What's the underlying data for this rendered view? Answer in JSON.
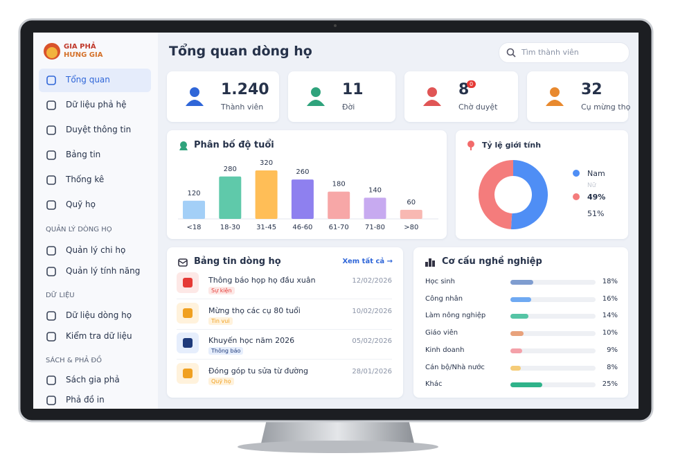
{
  "sidebar": {
    "brand": [
      "GIA PHẢ",
      "HƯNG GIA"
    ],
    "menu": [
      "Tổng quan",
      "Dữ liệu phả hệ",
      "Duyệt thông tin",
      "Bảng tin",
      "Thống kê",
      "Quỹ họ"
    ],
    "sections": [
      {
        "title": "QUẢN LÝ DÒNG HỌ",
        "items": [
          "Quản lý chi họ",
          "Quản lý tính năng"
        ]
      },
      {
        "title": "DỮ LIỆU",
        "items": [
          "Dữ liệu dòng họ",
          "Kiểm tra dữ liệu"
        ]
      },
      {
        "title": "SÁCH & PHẢ ĐỒ",
        "items": [
          "Sách gia phả",
          "Phả đồ in"
        ]
      }
    ]
  },
  "header": {
    "title": "Tổng quan dòng họ",
    "search_placeholder": "Tìm thành viên"
  },
  "stats": [
    {
      "value": "1.240",
      "label": "Thành viên"
    },
    {
      "value": "11",
      "label": "Đời"
    },
    {
      "value": "8",
      "badge": "0",
      "label": "Chờ duyệt"
    },
    {
      "value": "32",
      "label": "Cụ mừng thọ"
    }
  ],
  "age_chart": {
    "type": "bar",
    "title": "Phân bố độ tuổi",
    "categories": [
      "<18",
      "18-30",
      "31-45",
      "46-60",
      "61-70",
      "71-80",
      ">80"
    ],
    "values": [
      120,
      280,
      320,
      260,
      180,
      140,
      60
    ],
    "colors": [
      "#a3cff7",
      "#5fc9aa",
      "#ffbe57",
      "#8e80ef",
      "#f7a7a7",
      "#c7aaf0",
      "#f8b8b2"
    ]
  },
  "gender_chart": {
    "type": "donut",
    "title": "Tỷ lệ giới tính",
    "series": [
      {
        "name": "Nam",
        "color": "#4f8ef5",
        "value": 51,
        "value_label": "51%"
      },
      {
        "name": "Nữ",
        "color": "#f47c7c",
        "value": 49,
        "value_label": "49%"
      }
    ]
  },
  "news": {
    "title": "Bảng tin dòng họ",
    "link": "Xem tất cả →",
    "items": [
      {
        "title": "Thông báo họp họ đầu xuân",
        "tag": "Sự kiện",
        "date": "12/02/2026"
      },
      {
        "title": "Mừng thọ các cụ 80 tuổi",
        "tag": "Tin vui",
        "date": "10/02/2026"
      },
      {
        "title": "Khuyến học năm 2026",
        "tag": "Thông báo",
        "date": "05/02/2026"
      },
      {
        "title": "Đóng góp tu sửa từ đường",
        "tag": "Quỹ họ",
        "date": "28/01/2026"
      }
    ]
  },
  "occupation_chart": {
    "type": "bar",
    "title": "Cơ cấu nghề nghiệp",
    "categories": [
      "Học sinh",
      "Công nhân",
      "Làm nông nghiệp",
      "Giáo viên",
      "Kinh doanh",
      "Cán bộ/Nhà nước",
      "Khác"
    ],
    "values": [
      18,
      16,
      14,
      10,
      9,
      8,
      25
    ],
    "value_labels": [
      "18%",
      "16%",
      "14%",
      "10%",
      "9%",
      "8%",
      "25%"
    ],
    "colors": [
      "#7f9dd0",
      "#6fa9f2",
      "#55c4a5",
      "#e8a27c",
      "#f4a1a9",
      "#f5cc78",
      "#2fb38a"
    ]
  }
}
